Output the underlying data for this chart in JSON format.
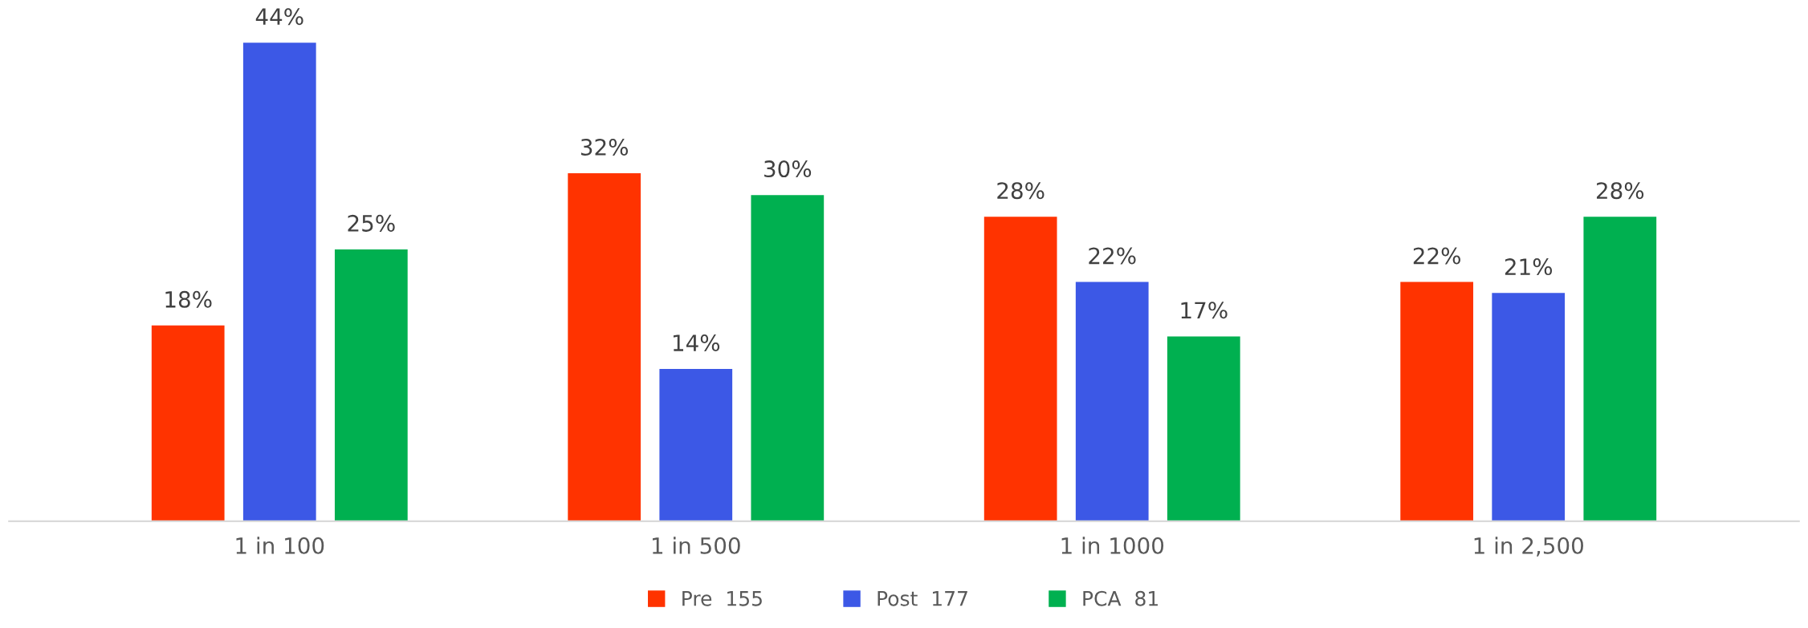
{
  "chart_data": {
    "type": "bar",
    "categories": [
      "1 in 100",
      "1 in 500",
      "1 in 1000",
      "1 in 2,500"
    ],
    "series": [
      {
        "name": "Pre  155",
        "color": "#ff3300",
        "values": [
          18,
          32,
          28,
          22
        ],
        "value_labels": [
          "18%",
          "32%",
          "28%",
          "22%"
        ]
      },
      {
        "name": "Post  177",
        "color": "#3c58e6",
        "values": [
          44,
          14,
          22,
          21
        ],
        "value_labels": [
          "44%",
          "14%",
          "22%",
          "21%"
        ]
      },
      {
        "name": "PCA  81",
        "color": "#00b050",
        "values": [
          25,
          30,
          17,
          28
        ],
        "value_labels": [
          "25%",
          "30%",
          "17%",
          "28%"
        ]
      }
    ],
    "legend": "bottom"
  }
}
